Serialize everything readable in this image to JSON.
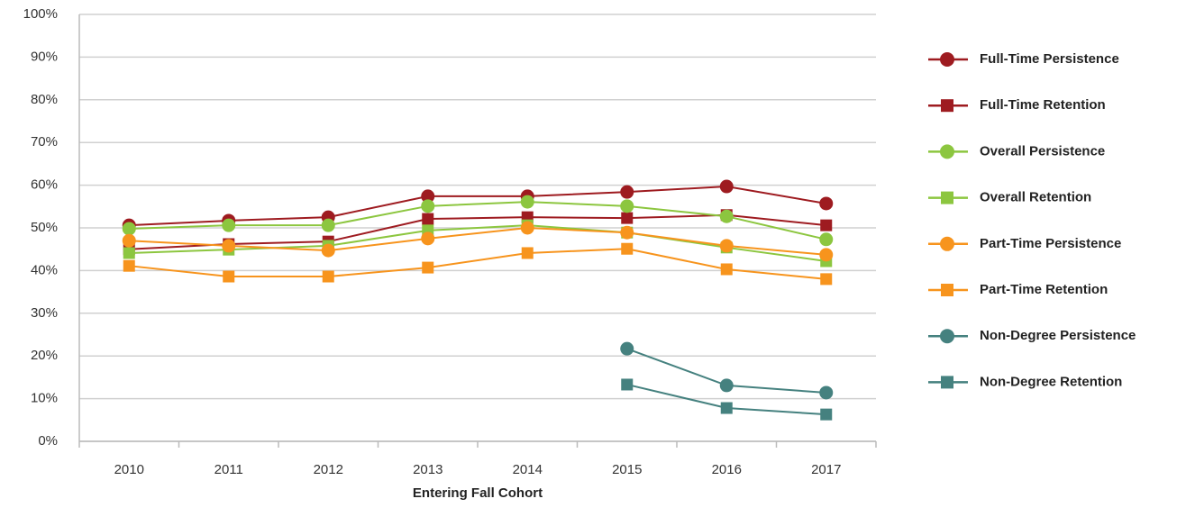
{
  "chart_data": {
    "type": "line",
    "x_label": "Entering Fall Cohort",
    "categories": [
      "2010",
      "2011",
      "2012",
      "2013",
      "2014",
      "2015",
      "2016",
      "2017"
    ],
    "ylim": [
      0,
      100
    ],
    "yticks": [
      {
        "value": 0,
        "label": "0%"
      },
      {
        "value": 10,
        "label": "10%"
      },
      {
        "value": 20,
        "label": "20%"
      },
      {
        "value": 30,
        "label": "30%"
      },
      {
        "value": 40,
        "label": "40%"
      },
      {
        "value": 50,
        "label": "50%"
      },
      {
        "value": 60,
        "label": "60%"
      },
      {
        "value": 70,
        "label": "70%"
      },
      {
        "value": 80,
        "label": "80%"
      },
      {
        "value": 90,
        "label": "90%"
      },
      {
        "value": 100,
        "label": "100%"
      }
    ],
    "grid": true,
    "legend": "right",
    "series": [
      {
        "name": "Full-Time Persistence",
        "color": "#9e1b20",
        "marker": "circle",
        "values": [
          50.6,
          51.7,
          52.5,
          57.4,
          57.4,
          58.4,
          59.7,
          55.7
        ]
      },
      {
        "name": "Full-Time Retention",
        "color": "#9e1b20",
        "marker": "square",
        "values": [
          45.0,
          46.2,
          46.8,
          52.1,
          52.5,
          52.3,
          53.0,
          50.6
        ]
      },
      {
        "name": "Overall Persistence",
        "color": "#8cc63f",
        "marker": "circle",
        "values": [
          49.8,
          50.6,
          50.6,
          55.1,
          56.1,
          55.1,
          52.7,
          47.3
        ]
      },
      {
        "name": "Overall Retention",
        "color": "#8cc63f",
        "marker": "square",
        "values": [
          44.1,
          44.9,
          45.8,
          49.4,
          50.6,
          48.9,
          45.4,
          42.2
        ]
      },
      {
        "name": "Part-Time Persistence",
        "color": "#f7941d",
        "marker": "circle",
        "values": [
          47.0,
          45.8,
          44.7,
          47.5,
          50.0,
          48.9,
          45.8,
          43.7
        ]
      },
      {
        "name": "Part-Time Retention",
        "color": "#f7941d",
        "marker": "square",
        "values": [
          41.1,
          38.6,
          38.6,
          40.7,
          44.1,
          45.1,
          40.3,
          38.0
        ]
      },
      {
        "name": "Non-Degree Persistence",
        "color": "#45817f",
        "marker": "circle",
        "values": [
          null,
          null,
          null,
          null,
          null,
          21.7,
          13.1,
          11.4
        ]
      },
      {
        "name": "Non-Degree Retention",
        "color": "#45817f",
        "marker": "square",
        "values": [
          null,
          null,
          null,
          null,
          null,
          13.3,
          7.8,
          6.3
        ]
      }
    ]
  }
}
